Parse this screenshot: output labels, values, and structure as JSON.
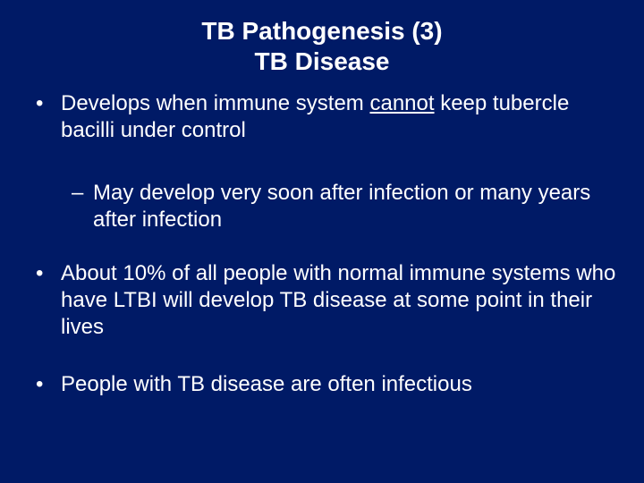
{
  "background_color": "#001a66",
  "text_color": "#ffffff",
  "font_family": "Arial",
  "title": {
    "line1": "TB Pathogenesis (3)",
    "line2": "TB Disease",
    "font_size": 28,
    "font_weight": "bold",
    "align": "center"
  },
  "body_font_size": 24,
  "bullets": {
    "b1_pre": "Develops when immune system ",
    "b1_underlined": "cannot",
    "b1_post": " keep tubercle bacilli under control",
    "sub1": "May develop very soon after infection or many years after infection",
    "b2": "About 10% of all people with normal immune systems who have LTBI will develop TB disease at some point in their lives",
    "b3": "People with TB disease are often infectious"
  },
  "l1_marker": "•",
  "l2_marker": "–"
}
